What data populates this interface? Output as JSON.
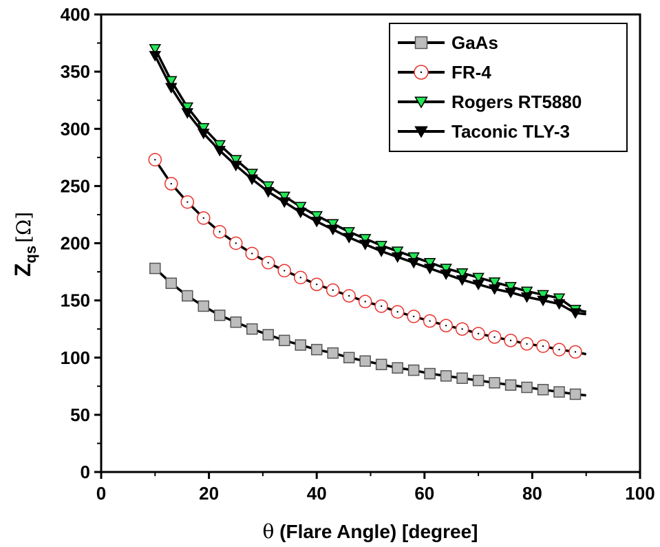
{
  "chart_data": {
    "type": "line",
    "title": "",
    "xlabel": {
      "symbol": "θ",
      "text": " (Flare Angle) [degree]"
    },
    "ylabel": {
      "main": "Z",
      "subscript": "qs",
      "unit": "[Ω]"
    },
    "xlim": [
      0,
      100
    ],
    "ylim": [
      0,
      400
    ],
    "xticks": [
      0,
      20,
      40,
      60,
      80,
      100
    ],
    "yticks": [
      0,
      50,
      100,
      150,
      200,
      250,
      300,
      350,
      400
    ],
    "grid": false,
    "legend_position": "top-right",
    "x": [
      10,
      13,
      16,
      19,
      22,
      25,
      28,
      31,
      34,
      37,
      40,
      43,
      46,
      49,
      52,
      55,
      58,
      61,
      64,
      67,
      70,
      73,
      76,
      79,
      82,
      85,
      88
    ],
    "series": [
      {
        "name": "GaAs",
        "marker": "square",
        "marker_fill": "#bdbdbd",
        "marker_stroke": "#555555",
        "line_end": [
          90,
          67
        ],
        "values": [
          178,
          165,
          154,
          145,
          137,
          131,
          125,
          120,
          115,
          111,
          107,
          104,
          100,
          97,
          94,
          91,
          89,
          86,
          84,
          82,
          80,
          78,
          76,
          74,
          72,
          70,
          68
        ]
      },
      {
        "name": "FR-4",
        "marker": "circle",
        "marker_fill": "#ffffff",
        "marker_stroke": "#e8302a",
        "line_end": [
          90,
          103
        ],
        "values": [
          273,
          252,
          236,
          222,
          210,
          200,
          191,
          183,
          176,
          170,
          164,
          159,
          154,
          149,
          145,
          140,
          136,
          132,
          128,
          125,
          121,
          118,
          115,
          112,
          110,
          107,
          105
        ]
      },
      {
        "name": "Rogers RT5880",
        "marker": "triangle-down",
        "marker_fill": "#22e655",
        "marker_stroke": "#000000",
        "line_end": [
          90,
          140
        ],
        "values": [
          370,
          342,
          319,
          301,
          286,
          273,
          261,
          250,
          241,
          232,
          224,
          217,
          210,
          204,
          198,
          193,
          188,
          183,
          178,
          174,
          170,
          166,
          162,
          158,
          155,
          152,
          142
        ]
      },
      {
        "name": "Taconic TLY-3",
        "marker": "triangle-down",
        "marker_fill": "#000000",
        "marker_stroke": "#000000",
        "line_end": [
          90,
          138
        ],
        "values": [
          364,
          336,
          314,
          296,
          281,
          268,
          256,
          245,
          236,
          227,
          219,
          212,
          205,
          199,
          193,
          188,
          183,
          178,
          173,
          168,
          164,
          160,
          157,
          153,
          150,
          147,
          139
        ]
      }
    ]
  }
}
